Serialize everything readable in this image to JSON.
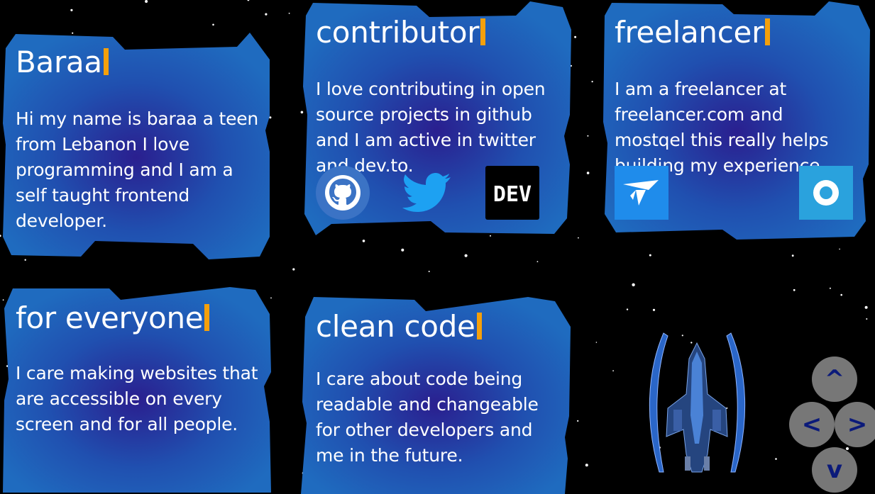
{
  "cards": [
    {
      "id": "baraa",
      "title": "Baraa",
      "text": "Hi my name is baraa a teen from Lebanon I love programming and I am a self taught frontend developer."
    },
    {
      "id": "contributor",
      "title": "contributor",
      "text": "I love contributing in open source projects in github and I am active in twitter and dev.to.",
      "icons": [
        {
          "name": "github-icon",
          "color": "#3b73c5"
        },
        {
          "name": "twitter-icon",
          "color": "#1da1f2"
        },
        {
          "name": "dev-icon",
          "label": "DEV",
          "color": "#000000"
        }
      ]
    },
    {
      "id": "freelancer",
      "title": "freelancer",
      "text": "I am a freelancer at freelancer.com and mostqel this really helps building my experience.",
      "icons": [
        {
          "name": "freelancer-icon",
          "color": "#1f8ceb"
        },
        {
          "name": "mostaql-icon",
          "color": "#2aa2dd"
        }
      ]
    },
    {
      "id": "for-everyone",
      "title": "for everyone",
      "text": "I care making websites that are accessible on every screen and for all people."
    },
    {
      "id": "clean-code",
      "title": "clean code",
      "text": "I care about code being readable and changeable for other developers and me in the future."
    }
  ],
  "controls": {
    "up": "^",
    "left": "<",
    "right": ">",
    "down": "v"
  },
  "colors": {
    "panel_blue": "#1f63b4",
    "panel_center": "#2a2d9a",
    "cursor": "#f5a00b",
    "control": "#777777",
    "control_text": "#0b1a7a"
  }
}
